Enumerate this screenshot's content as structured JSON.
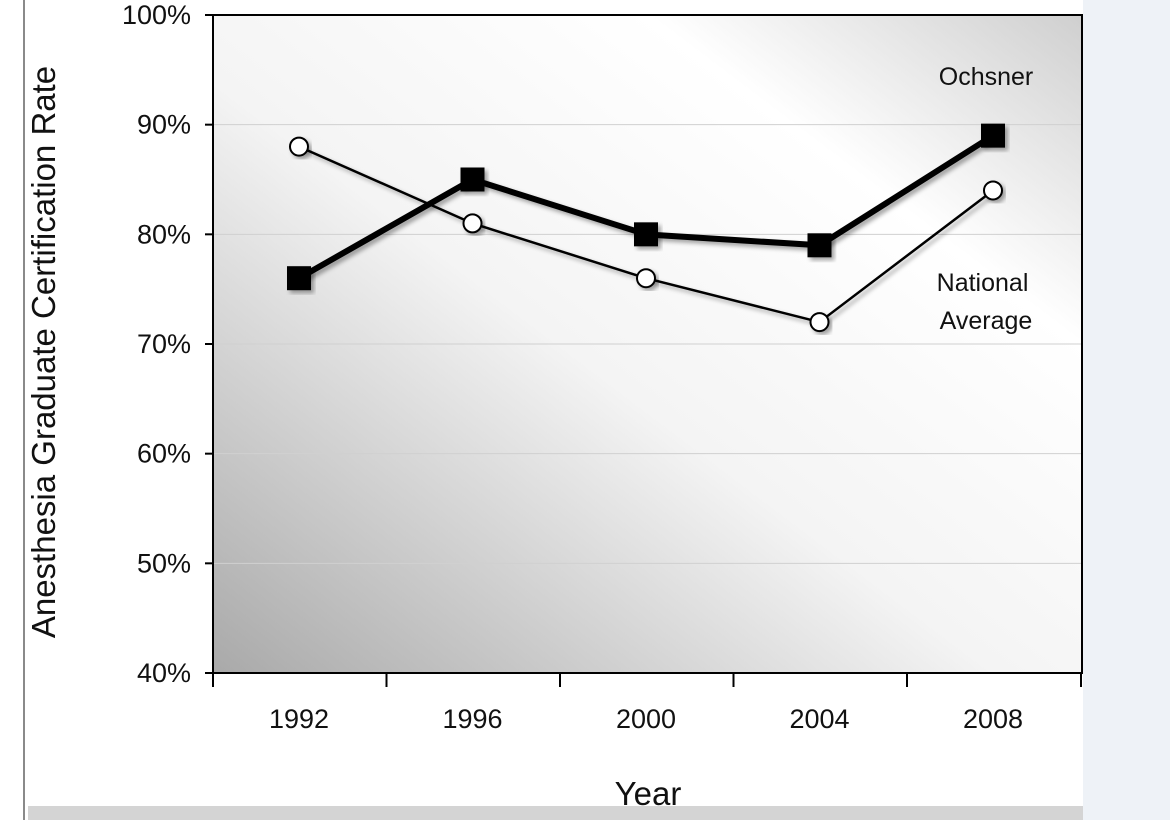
{
  "chart_data": {
    "type": "line",
    "x": [
      1992,
      1996,
      2000,
      2004,
      2008
    ],
    "x_tick_labels": [
      "1992",
      "1996",
      "2000",
      "2004",
      "2008"
    ],
    "y_tick_labels": [
      "40%",
      "50%",
      "60%",
      "70%",
      "80%",
      "90%",
      "100%"
    ],
    "ylim": [
      40,
      100
    ],
    "y_unit": "%",
    "xlabel": "Year",
    "ylabel": "Anesthesia Graduate Certification Rate",
    "grid": "horizontal",
    "series": [
      {
        "name": "Ochsner",
        "values": [
          76,
          85,
          80,
          79,
          89
        ],
        "marker": "filled-square",
        "color": "#000000"
      },
      {
        "name": "National Average",
        "name_lines": [
          "National",
          "Average"
        ],
        "values": [
          88,
          81,
          76,
          72,
          84
        ],
        "marker": "open-circle",
        "color": "#000000"
      }
    ]
  }
}
